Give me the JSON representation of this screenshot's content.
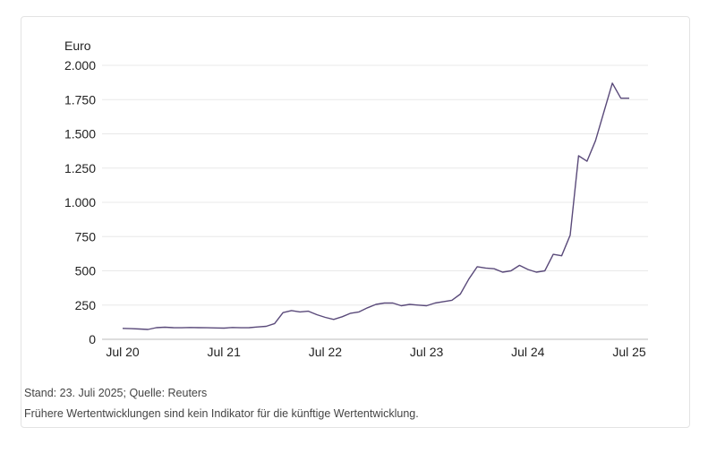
{
  "source_note": "Stand: 23. Juli 2025; Quelle: Reuters",
  "disclaimer": "Frühere Wertentwicklungen sind kein Indikator für die künftige Wertentwicklung.",
  "colors": {
    "line": "#5a4a7a",
    "grid": "#e8e8e8",
    "text": "#222222",
    "caption": "#444444"
  },
  "chart_data": {
    "type": "line",
    "title": "",
    "xlabel": "",
    "ylabel": "Euro",
    "xlim": [
      "2020-07",
      "2025-07"
    ],
    "ylim": [
      0,
      2000
    ],
    "y_ticks": [
      0,
      250,
      500,
      750,
      1000,
      1250,
      1500,
      1750,
      2000
    ],
    "y_tick_labels": [
      "0",
      "250",
      "500",
      "750",
      "1.000",
      "1.250",
      "1.500",
      "1.750",
      "2.000"
    ],
    "x_ticks": [
      "2020-07",
      "2021-07",
      "2022-07",
      "2023-07",
      "2024-07",
      "2025-07"
    ],
    "x_tick_labels": [
      "Jul 20",
      "Jul 21",
      "Jul 22",
      "Jul 23",
      "Jul 24",
      "Jul 25"
    ],
    "grid": "horizontal",
    "legend": "none",
    "series": [
      {
        "x": [
          "2020-07",
          "2020-08",
          "2020-09",
          "2020-10",
          "2020-11",
          "2020-12",
          "2021-01",
          "2021-02",
          "2021-03",
          "2021-04",
          "2021-05",
          "2021-06",
          "2021-07",
          "2021-08",
          "2021-09",
          "2021-10",
          "2021-11",
          "2021-12",
          "2022-01",
          "2022-02",
          "2022-03",
          "2022-04",
          "2022-05",
          "2022-06",
          "2022-07",
          "2022-08",
          "2022-09",
          "2022-10",
          "2022-11",
          "2022-12",
          "2023-01",
          "2023-02",
          "2023-03",
          "2023-04",
          "2023-05",
          "2023-06",
          "2023-07",
          "2023-08",
          "2023-09",
          "2023-10",
          "2023-11",
          "2023-12",
          "2024-01",
          "2024-02",
          "2024-03",
          "2024-04",
          "2024-05",
          "2024-06",
          "2024-07",
          "2024-08",
          "2024-09",
          "2024-10",
          "2024-11",
          "2024-12",
          "2025-01",
          "2025-02",
          "2025-03",
          "2025-04",
          "2025-05",
          "2025-06",
          "2025-07"
        ],
        "values": [
          80,
          78,
          75,
          72,
          85,
          88,
          85,
          84,
          86,
          85,
          84,
          83,
          82,
          86,
          84,
          85,
          90,
          95,
          115,
          195,
          210,
          200,
          205,
          180,
          160,
          145,
          165,
          190,
          200,
          230,
          255,
          265,
          265,
          245,
          255,
          250,
          245,
          265,
          275,
          285,
          330,
          440,
          530,
          520,
          515,
          490,
          500,
          540,
          510,
          490,
          500,
          620,
          610,
          760,
          1340,
          1300,
          1450,
          1660,
          1870,
          1760,
          1760
        ]
      }
    ]
  }
}
